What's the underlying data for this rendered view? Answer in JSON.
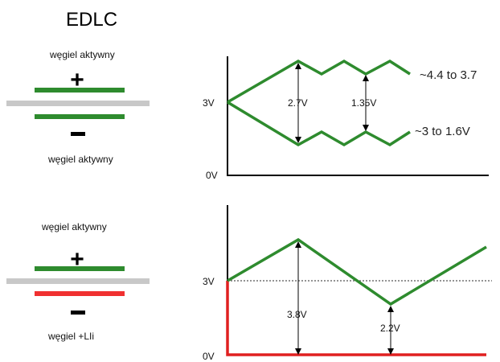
{
  "title": "EDLC",
  "top": {
    "electrode_top_label": "węgiel aktywny",
    "electrode_bottom_label": "węgiel aktywny",
    "plus_sign": "+",
    "minus_sign": "–",
    "y_label_3v": "3V",
    "y_label_0v": "0V",
    "span_label_1": "2.7V",
    "span_label_2": "1.35V",
    "upper_range_label": "~4.4 to 3.7",
    "lower_range_label": "~3 to 1.6V"
  },
  "bottom": {
    "electrode_top_label": "węgiel aktywny",
    "electrode_bottom_label": "węgiel +LIi",
    "plus_sign": "+",
    "minus_sign": "–",
    "y_label_3v": "3V",
    "y_label_0v": "0V",
    "span_label_1": "3.8V",
    "span_label_2": "2.2V"
  },
  "colors": {
    "electrode_green": "#2e8b2e",
    "separator_gray": "#c8c8c8",
    "electrode_red": "#f03030",
    "curve_green": "#2e8b2e",
    "baseline_red": "#e02020"
  }
}
